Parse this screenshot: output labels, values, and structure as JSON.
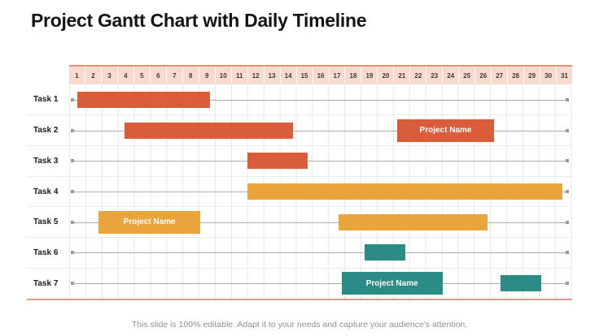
{
  "title": "Project Gantt Chart with Daily Timeline",
  "footer": "This slide is 100% editable. Adapt it to your needs and capture your audience's attention.",
  "colors": {
    "red": "#d95d3b",
    "orange": "#e9a43c",
    "teal": "#2b8b85",
    "header_fill": "#f8dace",
    "header_top_border": "#ea8d70",
    "bottom_border": "#d89b85",
    "grid_line": "#e9e7ec",
    "row_line": "#ababab"
  },
  "chart_data": {
    "type": "gantt",
    "title": "Project Gantt Chart with Daily Timeline",
    "x_axis": {
      "unit": "day",
      "min": 1,
      "max": 31,
      "ticks": [
        1,
        2,
        3,
        4,
        5,
        6,
        7,
        8,
        9,
        10,
        11,
        12,
        13,
        14,
        15,
        16,
        17,
        18,
        19,
        20,
        21,
        22,
        23,
        24,
        25,
        26,
        27,
        28,
        29,
        30,
        31
      ]
    },
    "legend": "none",
    "grid": true,
    "tasks": [
      {
        "name": "Task 1",
        "bars": [
          {
            "start": 0.5,
            "end": 8.7,
            "color": "red",
            "kind": "bar"
          }
        ]
      },
      {
        "name": "Task 2",
        "bars": [
          {
            "start": 3.4,
            "end": 13.8,
            "color": "red",
            "kind": "bar"
          },
          {
            "start": 20.2,
            "end": 26.2,
            "color": "red",
            "kind": "label-box",
            "label": "Project Name"
          }
        ]
      },
      {
        "name": "Task 3",
        "bars": [
          {
            "start": 11.0,
            "end": 14.7,
            "color": "red",
            "kind": "bar"
          }
        ]
      },
      {
        "name": "Task 4",
        "bars": [
          {
            "start": 11.0,
            "end": 30.4,
            "color": "orange",
            "kind": "bar"
          }
        ]
      },
      {
        "name": "Task 5",
        "bars": [
          {
            "start": 1.8,
            "end": 8.1,
            "color": "orange",
            "kind": "label-box",
            "label": "Project Name"
          },
          {
            "start": 16.6,
            "end": 25.8,
            "color": "orange",
            "kind": "bar"
          }
        ]
      },
      {
        "name": "Task 6",
        "bars": [
          {
            "start": 18.2,
            "end": 20.7,
            "color": "teal",
            "kind": "bar"
          }
        ]
      },
      {
        "name": "Task 7",
        "bars": [
          {
            "start": 16.8,
            "end": 23.0,
            "color": "teal",
            "kind": "label-box",
            "label": "Project Name"
          },
          {
            "start": 26.6,
            "end": 29.1,
            "color": "teal",
            "kind": "bar"
          }
        ]
      }
    ]
  }
}
